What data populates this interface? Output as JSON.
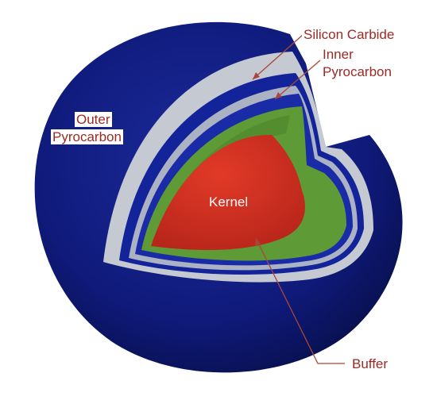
{
  "labels": {
    "silicon_carbide": "Silicon Carbide",
    "inner_pyrocarbon_line1": "Inner",
    "inner_pyrocarbon_line2": "Pyrocarbon",
    "outer_pyrocarbon_line1": "Outer",
    "outer_pyrocarbon_line2": "Pyrocarbon",
    "kernel": "Kernel",
    "buffer": "Buffer"
  },
  "colors": {
    "outer_pyrocarbon": "#0f1a7a",
    "silicon_carbide": "#c4c9d2",
    "inner_pyrocarbon": "#13239a",
    "buffer": "#5e9a35",
    "kernel": "#d52f1f",
    "leader_line": "#a8463a",
    "label_text": "#9b2a24"
  }
}
